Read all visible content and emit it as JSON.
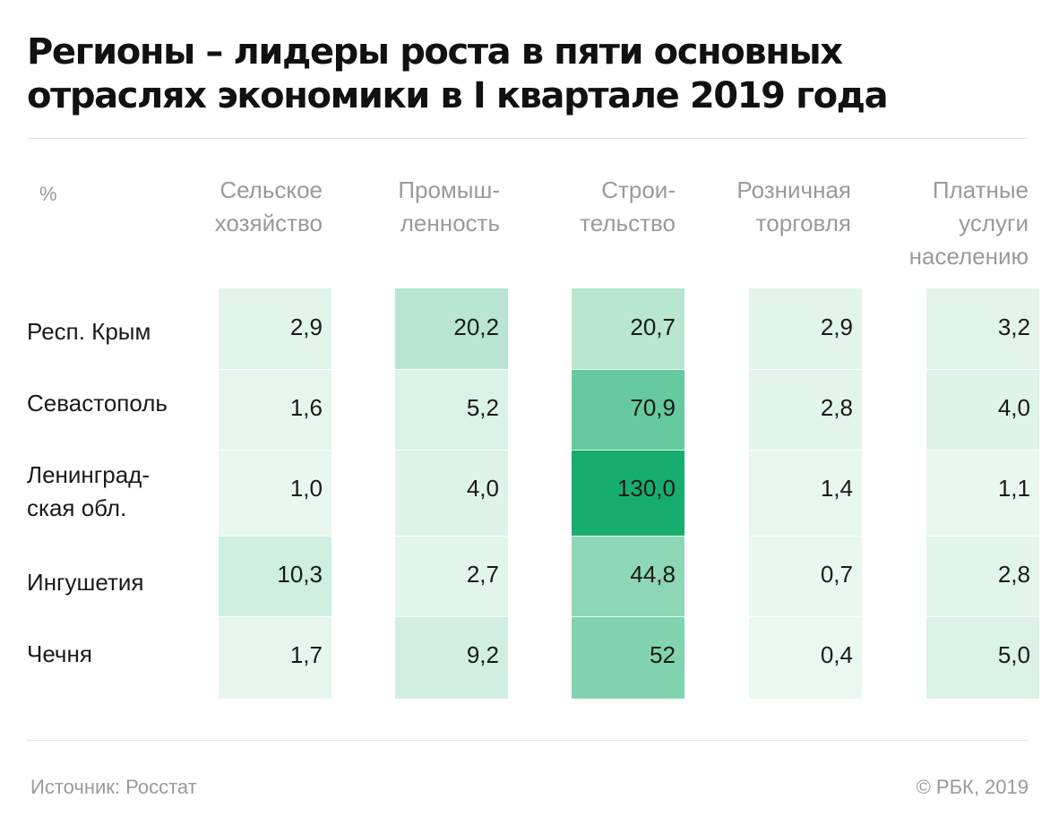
{
  "title": "Регионы – лидеры роста в пяти основных отраслях экономики в I квартале 2019 года",
  "unit": "%",
  "columns": [
    "Сельское\nхозяйство",
    "Промыш-\nленность",
    "Строи-\nтельство",
    "Розничная\nторговля",
    "Платные\nуслуги\nнаселению"
  ],
  "rows": [
    "Респ. Крым",
    "Севастополь",
    "Ленинград-\nская обл.",
    "Ингушетия",
    "Чечня"
  ],
  "cells": [
    [
      "2,9",
      "20,2",
      "20,7",
      "2,9",
      "3,2"
    ],
    [
      "1,6",
      "5,2",
      "70,9",
      "2,8",
      "4,0"
    ],
    [
      "1,0",
      "4,0",
      "130,0",
      "1,4",
      "1,1"
    ],
    [
      "10,3",
      "2,7",
      "44,8",
      "0,7",
      "2,8"
    ],
    [
      "1,7",
      "9,2",
      "52",
      "0,4",
      "5,0"
    ]
  ],
  "source": "Источник: Росстат",
  "copyright": "© РБК, 2019",
  "colors": {
    "heat_low": "#eef9f3",
    "heat_high": "#17ad6e",
    "text": "#1a1a1a",
    "muted": "#9a9a9a"
  },
  "chart_data": {
    "type": "heatmap",
    "title": "Регионы – лидеры роста в пяти основных отраслях экономики в I квартале 2019 года",
    "unit": "%",
    "x": [
      "Сельское хозяйство",
      "Промышленность",
      "Строительство",
      "Розничная торговля",
      "Платные услуги населению"
    ],
    "y": [
      "Респ. Крым",
      "Севастополь",
      "Ленинградская обл.",
      "Ингушетия",
      "Чечня"
    ],
    "values": [
      [
        2.9,
        20.2,
        20.7,
        2.9,
        3.2
      ],
      [
        1.6,
        5.2,
        70.9,
        2.8,
        4.0
      ],
      [
        1.0,
        4.0,
        130.0,
        1.4,
        1.1
      ],
      [
        10.3,
        2.7,
        44.8,
        0.7,
        2.8
      ],
      [
        1.7,
        9.2,
        52,
        0.4,
        5.0
      ]
    ],
    "color_scale": {
      "low": "#eef9f3",
      "high": "#17ad6e",
      "range": [
        0,
        130
      ]
    }
  }
}
